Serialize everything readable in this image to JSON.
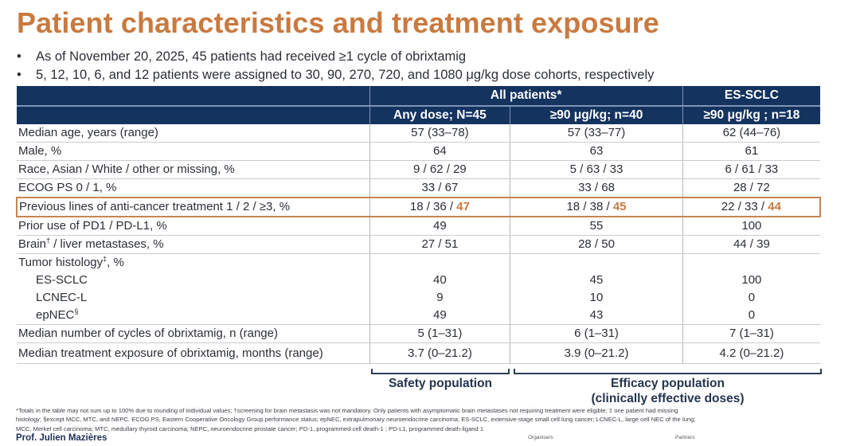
{
  "title": "Patient characteristics and treatment exposure",
  "bullets": [
    "As of November 20, 2025, 45 patients had received ≥1 cycle of obrixtamig",
    "5, 12, 10, 6, and 12 patients were assigned to 30, 90, 270, 720, and 1080 μg/kg dose cohorts, respectively"
  ],
  "bullet_symbol": "•",
  "table": {
    "group_headers": [
      "All patients*",
      "ES-SCLC"
    ],
    "column_headers": [
      "Any dose; N=45",
      "≥90 μg/kg; n=40",
      "≥90 μg/kg ; n=18"
    ],
    "rows": [
      {
        "label": "Median age, years (range)",
        "values": [
          "57 (33–78)",
          "57 (33–77)",
          "62 (44–76)"
        ]
      },
      {
        "label": "Male, %",
        "values": [
          "64",
          "63",
          "61"
        ]
      },
      {
        "label": "Race, Asian / White / other or missing, %",
        "values": [
          "9 / 62 / 29",
          "5 / 63 / 33",
          "6 / 61 / 33"
        ]
      },
      {
        "label": "ECOG PS 0 / 1, %",
        "values": [
          "33 / 67",
          "33 / 68",
          "28 / 72"
        ]
      },
      {
        "label": "Previous lines of anti-cancer treatment 1 / 2 / ≥3, %",
        "highlighted": true,
        "values_prefix": [
          "18 / 36 / ",
          "18 / 38 / ",
          "22 / 33 / "
        ],
        "values_emph": [
          "47",
          "45",
          "44"
        ]
      },
      {
        "label": "Prior use of PD1 / PD-L1, %",
        "values": [
          "49",
          "55",
          "100"
        ]
      },
      {
        "label": "Brain",
        "label_sup": "†",
        "label_rest": " / liver metastases, %",
        "values": [
          "27 / 51",
          "28 / 50",
          "44 / 39"
        ]
      }
    ],
    "histology": {
      "label": "Tumor histology",
      "label_sup": "‡",
      "label_rest": ", %",
      "subrows": [
        {
          "label": "ES-SCLC",
          "values": [
            "40",
            "45",
            "100"
          ]
        },
        {
          "label": "LCNEC-L",
          "values": [
            "9",
            "10",
            "0"
          ]
        },
        {
          "label": "epNEC",
          "label_sup": "§",
          "values": [
            "49",
            "43",
            "0"
          ]
        }
      ]
    },
    "rows_after": [
      {
        "label": "Median number of cycles of obrixtamig, n (range)",
        "values": [
          "5 (1–31)",
          "6 (1–31)",
          "7 (1–31)"
        ]
      },
      {
        "label": "Median treatment exposure of obrixtamig, months (range)",
        "values": [
          "3.7 (0–21.2)",
          "3.9 (0–21.2)",
          "4.2 (0–21.2)"
        ]
      }
    ]
  },
  "populations": {
    "safety": "Safety population",
    "efficacy_line1": "Efficacy population",
    "efficacy_line2": "(clinically effective doses)"
  },
  "footnote": {
    "line1": "*Totals in the table may not sum up to 100% due to rounding of individual values; †screening for brain metastasis was not mandatory. Only patients with asymptomatic brain metastases not requiring treatment were eligible; ‡ one patient had missing",
    "line2": "histology; §except MCC, MTC, and NEPC. ECOG PS, Eastern Cooperative Oncology Group performance status; epNEC, extrapulmonary neuroendocrine carcinoma; ES-SCLC, extensive-stage small cell lung cancer; LCNEC-L, large cell NEC of the lung;",
    "line3": "MCC, Merkel cell carcinoma; MTC, medullary thyroid carcinoma; NEPC, neuroendocrine prostate cancer; PD-1, programmed cell death-1 ; PD-L1, programmed death-ligand 1"
  },
  "author": "Prof. Julien Mazières",
  "organisers_label": "Organisers",
  "partners_label": "Partners",
  "colors": {
    "title": "#c97a40",
    "header_bg": "#14335f",
    "highlight_border": "#c9844f",
    "emphasis": "#c97a40"
  }
}
